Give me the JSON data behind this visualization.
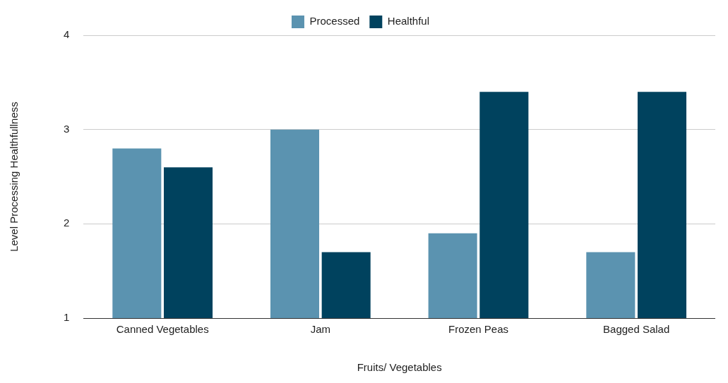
{
  "chart_data": {
    "type": "bar",
    "xlabel": "Fruits/ Vegetables",
    "ylabel": "Level Processing Healthfullness",
    "categories": [
      "Canned Vegetables",
      "Jam",
      "Frozen Peas",
      "Bagged Salad"
    ],
    "series": [
      {
        "name": "Processed",
        "color": "#5b93b0",
        "values": [
          2.8,
          3.0,
          1.9,
          1.7
        ]
      },
      {
        "name": "Healthful",
        "color": "#00425e",
        "values": [
          2.6,
          1.7,
          3.4,
          3.4
        ]
      }
    ],
    "ylim": [
      1,
      4
    ],
    "yticks": [
      1,
      2,
      3,
      4
    ],
    "grid": "y",
    "legend": "top"
  }
}
